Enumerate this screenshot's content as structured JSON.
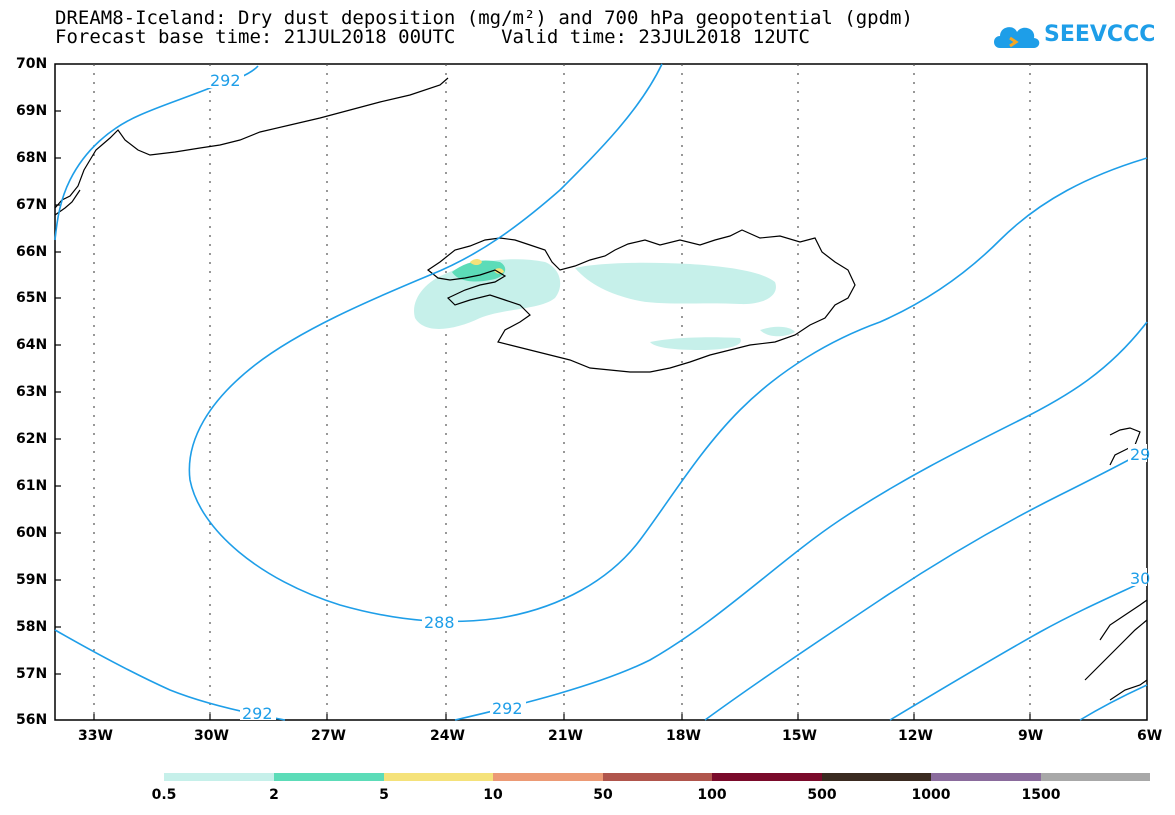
{
  "title": {
    "line1": "DREAM8-Iceland: Dry dust deposition (mg/m²) and 700 hPa geopotential (gpdm)",
    "line2": "Forecast base time: 21JUL2018 00UTC    Valid time: 23JUL2018 12UTC"
  },
  "logo": {
    "text": "SEEVCCC",
    "icon": "cloud-icon",
    "color": "#1e9ee8"
  },
  "map": {
    "lat_labels": [
      "70N",
      "69N",
      "68N",
      "67N",
      "66N",
      "65N",
      "64N",
      "63N",
      "62N",
      "61N",
      "60N",
      "59N",
      "58N",
      "57N",
      "56N"
    ],
    "lon_labels": [
      "33W",
      "30W",
      "27W",
      "24W",
      "21W",
      "18W",
      "15W",
      "12W",
      "9W",
      "6W"
    ],
    "contour_color": "#1e9ee8",
    "contour_labels": [
      "292",
      "288",
      "292",
      "292",
      "29",
      "30"
    ]
  },
  "colorbar": {
    "labels": [
      "0.5",
      "2",
      "5",
      "10",
      "50",
      "100",
      "500",
      "1000",
      "1500"
    ],
    "colors": [
      "#c6f0ea",
      "#5cdcb8",
      "#f5e27a",
      "#ec9a75",
      "#b0554c",
      "#7a0a2a",
      "#3a2a20",
      "#8a6b9c",
      "#a8a8a8"
    ]
  }
}
